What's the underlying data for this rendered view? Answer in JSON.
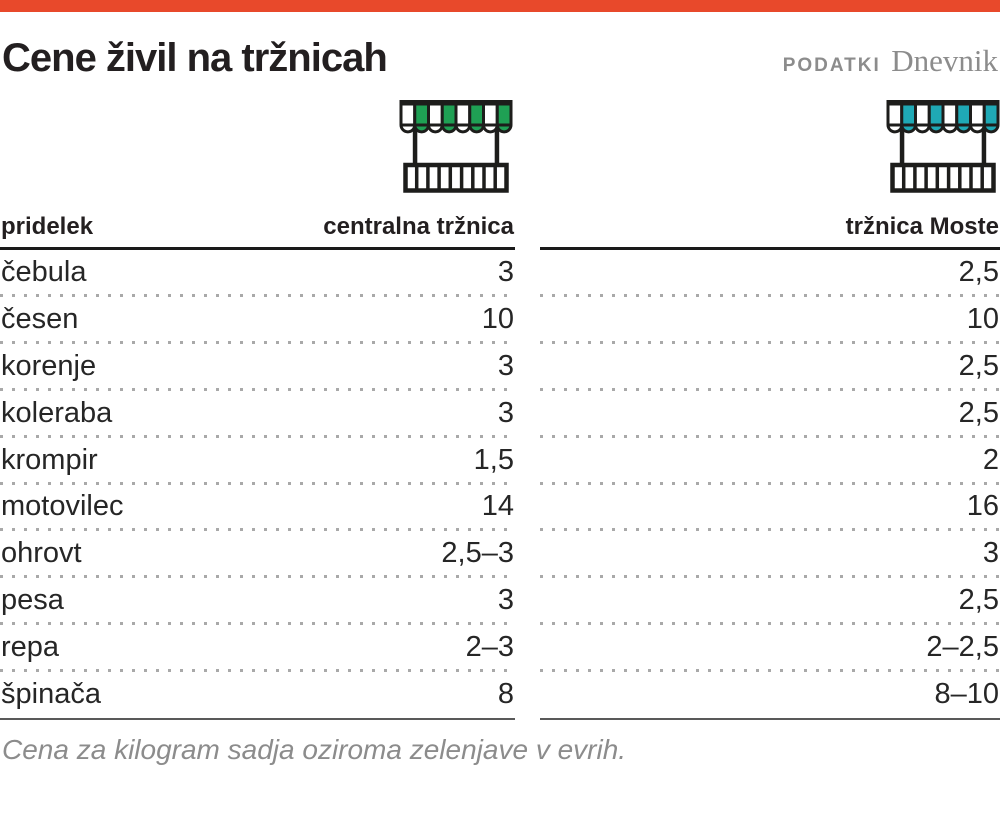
{
  "header": {
    "title": "Cene živil na tržnicah",
    "source_label": "PODATKI",
    "source_name": "Dnevnik"
  },
  "colors": {
    "topbar": "#e8492b",
    "central_accent": "#1fa054",
    "moste_accent": "#1fa9b5",
    "line_dark": "#1a1a1a",
    "dots": "#a9a9a9",
    "muted_text": "#8c8c8c"
  },
  "tables": [
    {
      "product_header": "pridelek",
      "market_header": "centralna tržnica",
      "accent": "#1fa054",
      "value_col": 1,
      "show_labels": true
    },
    {
      "product_header": "",
      "market_header": "tržnica Moste",
      "accent": "#1fa9b5",
      "value_col": 2,
      "show_labels": false
    }
  ],
  "chart_data": {
    "type": "table",
    "title": "Cene živil na tržnicah",
    "columns": [
      "pridelek",
      "centralna tržnica",
      "tržnica Moste"
    ],
    "rows": [
      [
        "čebula",
        "3",
        "2,5"
      ],
      [
        "česen",
        "10",
        "10"
      ],
      [
        "korenje",
        "3",
        "2,5"
      ],
      [
        "koleraba",
        "3",
        "2,5"
      ],
      [
        "krompir",
        "1,5",
        "2"
      ],
      [
        "motovilec",
        "14",
        "16"
      ],
      [
        "ohrovt",
        "2,5–3",
        "3"
      ],
      [
        "pesa",
        "3",
        "2,5"
      ],
      [
        "repa",
        "2–3",
        "2–2,5"
      ],
      [
        "špinača",
        "8",
        "8–10"
      ]
    ],
    "note": "Cena za kilogram sadja oziroma zelenjave v evrih."
  },
  "footer": {
    "note": "Cena za kilogram sadja oziroma zelenjave v evrih."
  }
}
